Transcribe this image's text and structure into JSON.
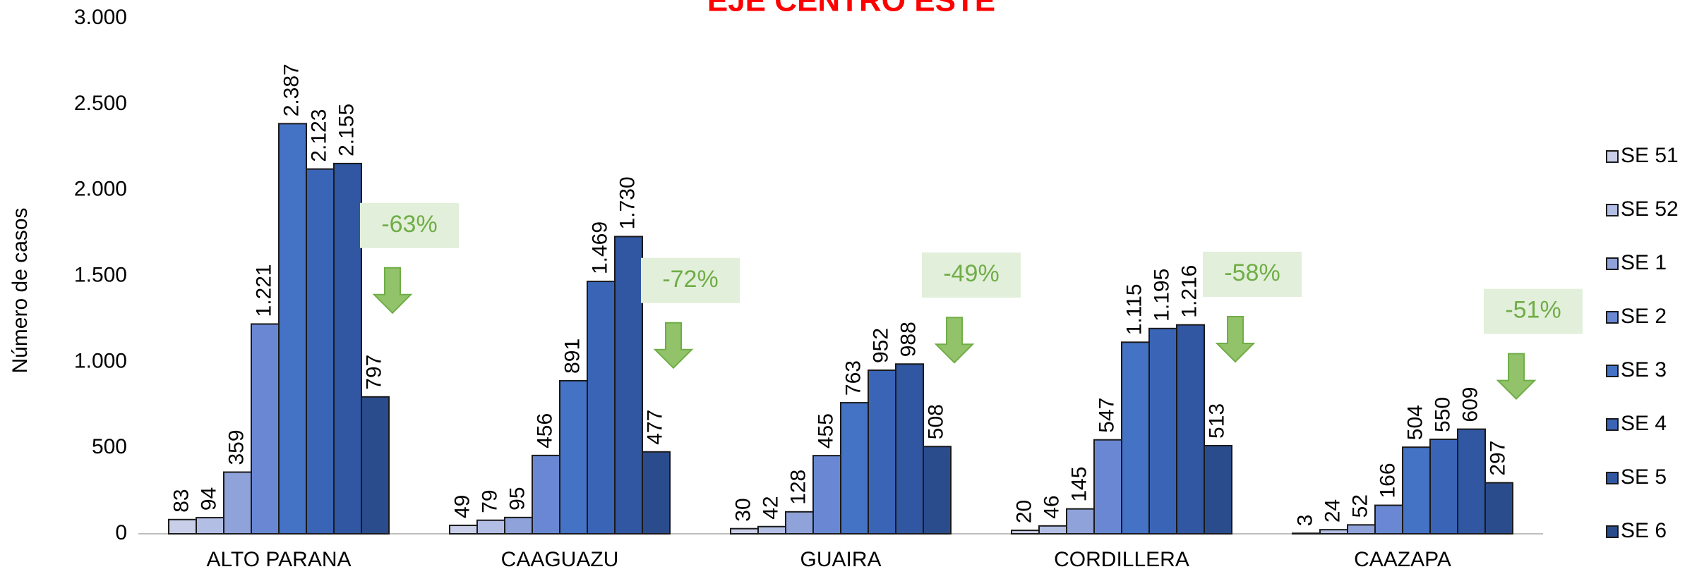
{
  "chart_data": {
    "type": "bar",
    "title": "EJE CENTRO ESTE",
    "y_label": "Número de casos",
    "categories": [
      "ALTO PARANA",
      "CAAGUAZU",
      "GUAIRA",
      "CORDILLERA",
      "CAAZAPA"
    ],
    "ylim": [
      0,
      3000
    ],
    "yticks": [
      0,
      500,
      {
        "value": 1000,
        "label": "1.000"
      },
      {
        "value": 1500,
        "label": "1.500"
      },
      {
        "value": 2000,
        "label": "2.000"
      },
      {
        "value": 2500,
        "label": "2.500"
      },
      {
        "value": 3000,
        "label": "3.000"
      }
    ],
    "legend": "right",
    "series": [
      {
        "name": "SE 51",
        "color": "#c9cfe9",
        "values": [
          83,
          49,
          30,
          20,
          3
        ],
        "value_labels": [
          "83",
          "49",
          "30",
          "20",
          "3"
        ]
      },
      {
        "name": "SE 52",
        "color": "#b3bee4",
        "values": [
          94,
          79,
          42,
          46,
          24
        ],
        "value_labels": [
          "94",
          "79",
          "42",
          "46",
          "24"
        ]
      },
      {
        "name": "SE 1",
        "color": "#8fa2d9",
        "values": [
          359,
          95,
          128,
          145,
          52
        ],
        "value_labels": [
          "359",
          "95",
          "128",
          "145",
          "52"
        ]
      },
      {
        "name": "SE 2",
        "color": "#6987d2",
        "values": [
          1221,
          456,
          455,
          547,
          166
        ],
        "value_labels": [
          "1.221",
          "456",
          "455",
          "547",
          "166"
        ]
      },
      {
        "name": "SE 3",
        "color": "#4472c4",
        "values": [
          2387,
          891,
          763,
          1115,
          504
        ],
        "value_labels": [
          "2.387",
          "891",
          "763",
          "1.115",
          "504"
        ]
      },
      {
        "name": "SE 4",
        "color": "#3a64b6",
        "values": [
          2123,
          1469,
          952,
          1195,
          550
        ],
        "value_labels": [
          "2.123",
          "1.469",
          "952",
          "1.195",
          "550"
        ]
      },
      {
        "name": "SE 5",
        "color": "#3157a2",
        "values": [
          2155,
          1730,
          988,
          1216,
          609
        ],
        "value_labels": [
          "2.155",
          "1.730",
          "988",
          "1.216",
          "609"
        ]
      },
      {
        "name": "SE 6",
        "color": "#2b4c8c",
        "values": [
          797,
          477,
          508,
          513,
          297
        ],
        "value_labels": [
          "797",
          "477",
          "508",
          "513",
          "297"
        ]
      }
    ],
    "annotations": [
      "-63%",
      "-72%",
      "-49%",
      "-58%",
      "-51%"
    ]
  }
}
